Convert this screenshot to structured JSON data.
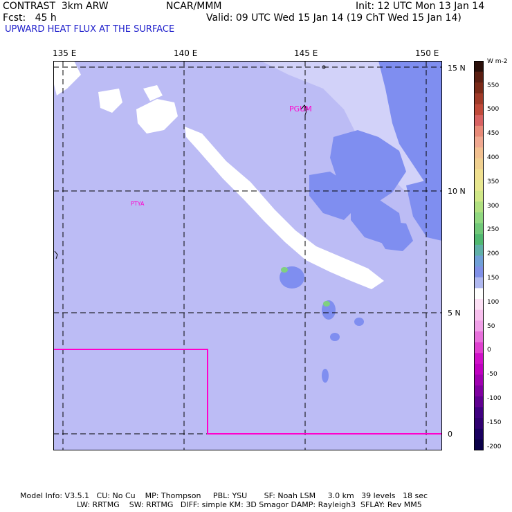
{
  "header": {
    "line1_left": "CONTRAST  3km ARW",
    "line1_center": "NCAR/MMM",
    "line1_right": "Init: 12 UTC Mon 13 Jan 14",
    "line2_left": "Fcst:   45 h",
    "line2_right": "Valid: 09 UTC Wed 15 Jan 14 (19 ChT Wed 15 Jan 14)",
    "field_title": "UPWARD HEAT FLUX AT THE SURFACE"
  },
  "map": {
    "lon_labels": [
      "135 E",
      "140 E",
      "145 E",
      "150 E"
    ],
    "lat_labels": [
      "15 N",
      "10 N",
      "5 N",
      "0"
    ],
    "stations": [
      {
        "name": "PGUM",
        "color": "#ff00cc"
      },
      {
        "name": "PTYA",
        "color": "#ff00cc"
      }
    ],
    "colors": {
      "background_flux": "#bcbcf5",
      "light_flux": "#7f8ef0",
      "pale_flux": "#d7d7fa",
      "clear_band": "#ffffff",
      "green_flux": "#7fd080",
      "boundary": "#ff00cc",
      "grid": "#000000"
    }
  },
  "colorbar": {
    "unit": "W m-2",
    "tick_labels": [
      "550",
      "500",
      "450",
      "400",
      "350",
      "300",
      "250",
      "200",
      "150",
      "100",
      "50",
      "0",
      "-50",
      "-100",
      "-150",
      "-200"
    ],
    "colors": [
      "#2a0f0a",
      "#5a1e12",
      "#7a2a18",
      "#a03a28",
      "#c04a3a",
      "#d86262",
      "#e88a78",
      "#f0a890",
      "#f2c090",
      "#f0d090",
      "#f0e090",
      "#e8e890",
      "#d0e888",
      "#b0e080",
      "#90d880",
      "#70c878",
      "#50b870",
      "#60b0a8",
      "#70a0d8",
      "#8090e8",
      "#b0b8f0",
      "#ffffff",
      "#fde0f5",
      "#f8c0ee",
      "#f0a0e8",
      "#e870dc",
      "#e040d0",
      "#d010c8",
      "#c000c0",
      "#a000b0",
      "#8000a0",
      "#600090",
      "#400080",
      "#300070",
      "#1a0060",
      "#0a0048"
    ]
  },
  "footer": {
    "line1": "Model Info: V3.5.1   CU: No Cu    MP: Thompson     PBL: YSU       SF: Noah LSM     3.0 km   39 levels   18 sec",
    "line2": "LW: RRTMG    SW: RRTMG   DIFF: simple KM: 3D Smagor DAMP: Rayleigh3  SFLAY: Rev MM5"
  }
}
